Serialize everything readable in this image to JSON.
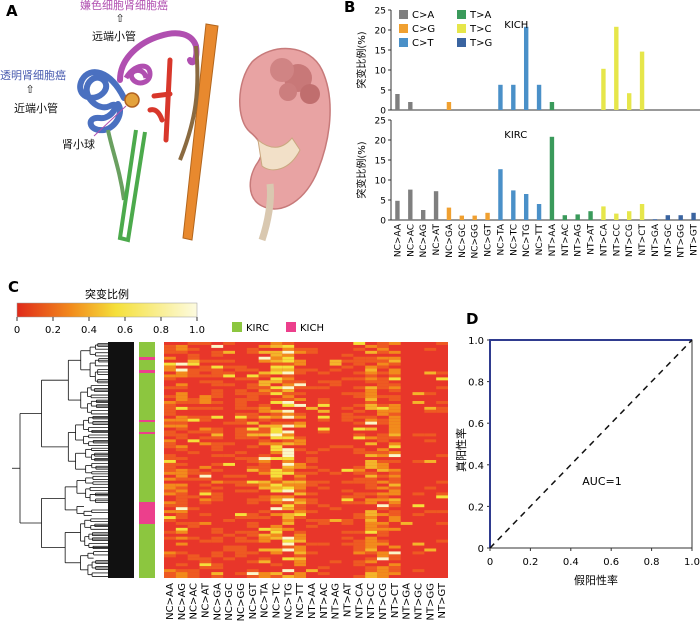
{
  "panels": {
    "a": {
      "letter": "A",
      "labels": {
        "chromophobe": "嫌色细胞肾细胞癌",
        "distal_tubule": "远端小管",
        "clear_cell": "透明肾细胞癌",
        "proximal_tubule": "近端小管",
        "glomerulus": "肾小球"
      },
      "arrow_glyph": "⇧"
    },
    "b": {
      "letter": "B",
      "ylabel": "突变比例(%)",
      "legend": [
        {
          "name": "C>A",
          "color": "#7f7f7f"
        },
        {
          "name": "T>A",
          "color": "#3a9a5b"
        },
        {
          "name": "C>G",
          "color": "#f0a030"
        },
        {
          "name": "T>C",
          "color": "#e6e64a"
        },
        {
          "name": "C>T",
          "color": "#4a90c8"
        },
        {
          "name": "T>G",
          "color": "#3a64a0"
        }
      ],
      "colors": {
        "C>A": "#7f7f7f",
        "C>G": "#f0a030",
        "C>T": "#4a90c8",
        "T>A": "#3a9a5b",
        "T>C": "#e6e64a",
        "T>G": "#3a64a0"
      }
    },
    "c": {
      "letter": "C",
      "scale_title": "突变比例",
      "scale_ticks": [
        "0",
        "0.2",
        "0.4",
        "0.6",
        "0.8",
        "1.0"
      ],
      "legend": [
        {
          "name": "KIRC",
          "color": "#8cc63f"
        },
        {
          "name": "KICH",
          "color": "#ec3f8c"
        }
      ]
    },
    "d": {
      "letter": "D",
      "xlabel": "假阳性率",
      "ylabel": "真阳性率",
      "auc": "AUC=1"
    }
  },
  "chart_data": [
    {
      "type": "bar",
      "title": "KICH",
      "ylabel": "突变比例(%)",
      "ylim": [
        0,
        25
      ],
      "yticks": [
        "0",
        "5",
        "10",
        "15",
        "20",
        "25"
      ],
      "categories": [
        "NC>AA",
        "NC>AC",
        "NC>AG",
        "NC>AT",
        "NC>GA",
        "NC>GC",
        "NC>GG",
        "NC>GT",
        "NC>TA",
        "NC>TC",
        "NC>TG",
        "NC>TT",
        "NT>AA",
        "NT>AC",
        "NT>AG",
        "NT>AT",
        "NT>CA",
        "NT>CC",
        "NT>CG",
        "NT>CT",
        "NT>GA",
        "NT>GC",
        "NT>GG",
        "NT>GT"
      ],
      "mutation_type": [
        "C>A",
        "C>A",
        "C>A",
        "C>A",
        "C>G",
        "C>G",
        "C>G",
        "C>G",
        "C>T",
        "C>T",
        "C>T",
        "C>T",
        "T>A",
        "T>A",
        "T>A",
        "T>A",
        "T>C",
        "T>C",
        "T>C",
        "T>C",
        "T>G",
        "T>G",
        "T>G",
        "T>G"
      ],
      "values": [
        4.0,
        2.0,
        0,
        0,
        2.0,
        0,
        0,
        0,
        6.3,
        6.3,
        20.8,
        6.3,
        2.0,
        0,
        0,
        0,
        10.3,
        20.8,
        4.2,
        14.6,
        0,
        0,
        0,
        0
      ]
    },
    {
      "type": "bar",
      "title": "KIRC",
      "ylabel": "突变比例(%)",
      "ylim": [
        0,
        25
      ],
      "yticks": [
        "0",
        "5",
        "10",
        "15",
        "20",
        "25"
      ],
      "categories": [
        "NC>AA",
        "NC>AC",
        "NC>AG",
        "NC>AT",
        "NC>GA",
        "NC>GC",
        "NC>GG",
        "NC>GT",
        "NC>TA",
        "NC>TC",
        "NC>TG",
        "NC>TT",
        "NT>AA",
        "NT>AC",
        "NT>AG",
        "NT>AT",
        "NT>CA",
        "NT>CC",
        "NT>CG",
        "NT>CT",
        "NT>GA",
        "NT>GC",
        "NT>GG",
        "NT>GT"
      ],
      "mutation_type": [
        "C>A",
        "C>A",
        "C>A",
        "C>A",
        "C>G",
        "C>G",
        "C>G",
        "C>G",
        "C>T",
        "C>T",
        "C>T",
        "C>T",
        "T>A",
        "T>A",
        "T>A",
        "T>A",
        "T>C",
        "T>C",
        "T>C",
        "T>C",
        "T>G",
        "T>G",
        "T>G",
        "T>G"
      ],
      "values": [
        4.8,
        7.6,
        2.5,
        7.2,
        3.1,
        1.1,
        1.1,
        1.8,
        12.7,
        7.4,
        6.5,
        4.0,
        20.8,
        1.2,
        1.4,
        2.2,
        3.4,
        1.6,
        2.2,
        4.0,
        0.2,
        1.2,
        1.2,
        1.8
      ]
    },
    {
      "type": "heatmap",
      "columns": [
        "NC>AA",
        "NC>AG",
        "NC>AC",
        "NC>AT",
        "NC>GA",
        "NC>GC",
        "NC>GG",
        "NC>GT",
        "NC>TA",
        "NC>TC",
        "NC>TG",
        "NC>TT",
        "NT>AA",
        "NT>AC",
        "NT>AG",
        "NT>AT",
        "NT>CA",
        "NT>CC",
        "NT>CG",
        "NT>CT",
        "NT>GA",
        "NT>GC",
        "NT>GG",
        "NT>GT"
      ],
      "value_range": [
        0,
        1.0
      ]
    },
    {
      "type": "line",
      "title": "",
      "xlabel": "假阳性率",
      "ylabel": "真阳性率",
      "xlim": [
        0,
        1.0
      ],
      "ylim": [
        0,
        1.0
      ],
      "xticks": [
        "0",
        "0.2",
        "0.4",
        "0.6",
        "0.8",
        "1.0"
      ],
      "yticks": [
        "0",
        "0.2",
        "0.4",
        "0.6",
        "0.8",
        "1.0"
      ],
      "series": [
        {
          "x": [
            0,
            0,
            1.0
          ],
          "y": [
            0,
            1.0,
            1.0
          ],
          "style": "solid",
          "color": "#2f3b8f"
        },
        {
          "x": [
            0,
            1.0
          ],
          "y": [
            0,
            1.0
          ],
          "style": "dashed",
          "color": "#111111"
        }
      ]
    }
  ]
}
